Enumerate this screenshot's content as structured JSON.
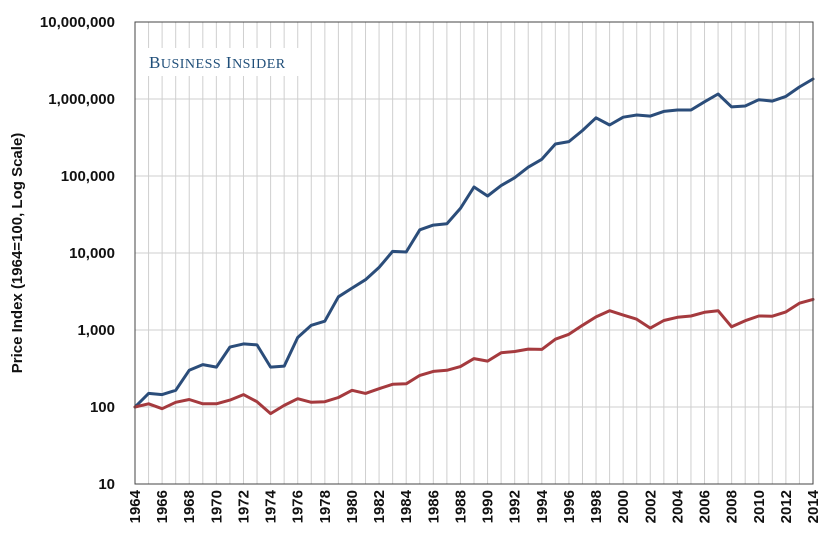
{
  "watermark": {
    "text": "Business Insider"
  },
  "chart_data": {
    "type": "line",
    "ylabel": "Price Index (1964=100, Log Scale)",
    "xlabel": "",
    "yscale": "log",
    "ylim": [
      10,
      10000000
    ],
    "xlim": [
      1964,
      2014
    ],
    "grid": true,
    "y_ticks": [
      10,
      100,
      1000,
      10000,
      100000,
      1000000,
      10000000
    ],
    "y_tick_labels": [
      "10",
      "100",
      "1,000",
      "10,000",
      "100,000",
      "1,000,000",
      "10,000,000"
    ],
    "x_tick_labels": [
      "1964",
      "1966",
      "1968",
      "1970",
      "1972",
      "1974",
      "1976",
      "1978",
      "1980",
      "1982",
      "1984",
      "1986",
      "1988",
      "1990",
      "1992",
      "1994",
      "1996",
      "1998",
      "2000",
      "2002",
      "2004",
      "2006",
      "2008",
      "2010",
      "2012",
      "2014"
    ],
    "x": [
      1964,
      1965,
      1966,
      1967,
      1968,
      1969,
      1970,
      1971,
      1972,
      1973,
      1974,
      1975,
      1976,
      1977,
      1978,
      1979,
      1980,
      1981,
      1982,
      1983,
      1984,
      1985,
      1986,
      1987,
      1988,
      1989,
      1990,
      1991,
      1992,
      1993,
      1994,
      1995,
      1996,
      1997,
      1998,
      1999,
      2000,
      2001,
      2002,
      2003,
      2004,
      2005,
      2006,
      2007,
      2008,
      2009,
      2010,
      2011,
      2012,
      2013,
      2014
    ],
    "series": [
      {
        "color": "#2b4d7a",
        "values": [
          100,
          150,
          145,
          165,
          300,
          355,
          330,
          600,
          660,
          640,
          330,
          340,
          800,
          1150,
          1300,
          2700,
          3500,
          4500,
          6500,
          10500,
          10300,
          20000,
          23000,
          24000,
          38000,
          72000,
          55000,
          75000,
          95000,
          130000,
          165000,
          260000,
          280000,
          390000,
          570000,
          460000,
          580000,
          620000,
          600000,
          690000,
          720000,
          720000,
          920000,
          1160000,
          790000,
          810000,
          980000,
          940000,
          1080000,
          1430000,
          1820000
        ]
      },
      {
        "color": "#a53a3e",
        "values": [
          100,
          110,
          95,
          115,
          125,
          110,
          110,
          123,
          145,
          117,
          82,
          105,
          128,
          115,
          117,
          133,
          165,
          150,
          173,
          197,
          200,
          257,
          290,
          300,
          335,
          425,
          395,
          505,
          525,
          565,
          560,
          760,
          880,
          1150,
          1480,
          1780,
          1560,
          1380,
          1060,
          1330,
          1460,
          1520,
          1700,
          1780,
          1100,
          1320,
          1520,
          1510,
          1720,
          2230,
          2500
        ]
      }
    ]
  }
}
